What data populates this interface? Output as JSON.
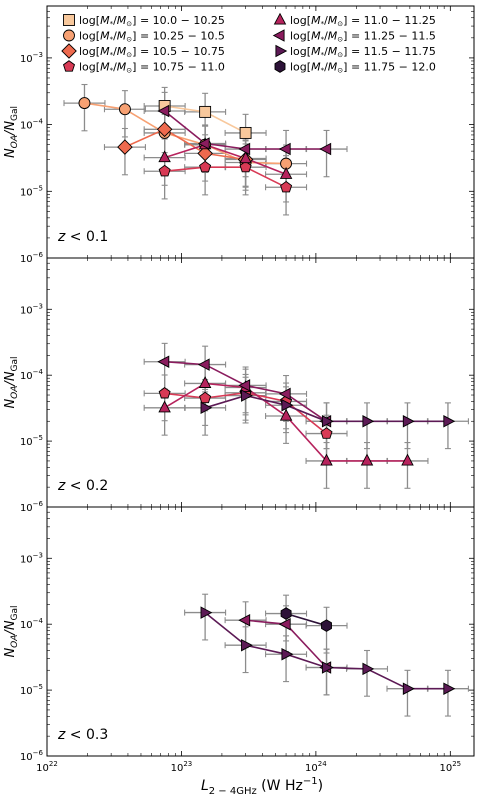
{
  "figure": {
    "xlabel_main": "L",
    "xlabel_sub": "2 − 4GHz",
    "xlabel_unit": " (W Hz",
    "xlabel_exp": "−1",
    "xlabel_close": ")",
    "ylabel_main": "N",
    "ylabel_sub1": "OA",
    "ylabel_mid": "/N",
    "ylabel_sub2": "Gal",
    "x_tick_base": "10",
    "x_tick_exps": [
      "22",
      "23",
      "24",
      "25"
    ],
    "y_tick_base": "10",
    "y_tick_exps": [
      "−3",
      "−4",
      "−5",
      "−6"
    ],
    "panel_labels": [
      {
        "z": "z",
        "rel": " < 0.1"
      },
      {
        "z": "z",
        "rel": " <  0.2"
      },
      {
        "z": "z",
        "rel": " <  0.3"
      }
    ],
    "legend_prefix": "log[",
    "legend_m": "M",
    "legend_star": "*",
    "legend_slash": "/",
    "legend_msun": "M",
    "legend_sun": "⊙",
    "legend_suffix": "] = "
  },
  "chart_data": [
    {
      "type": "line",
      "panel": 1,
      "xscale": "log",
      "yscale": "log",
      "xlim": [
        1e+22,
        1.5e+25
      ],
      "ylim": [
        1e-06,
        0.006
      ],
      "grid": false,
      "legend_placement": "top, two columns",
      "series": [
        {
          "name": "10.0 − 10.25",
          "marker": "square",
          "color": "#f8c89c",
          "x": [
            7.5e+22,
            1.5e+23,
            3e+23
          ],
          "y": [
            0.00019,
            0.000155,
            7.5e-05
          ]
        },
        {
          "name": "10.25 − 10.5",
          "marker": "circle",
          "color": "#f7a173",
          "x": [
            1.9e+22,
            3.8e+22,
            7.5e+22,
            1.5e+23,
            3e+23,
            6e+23
          ],
          "y": [
            0.00021,
            0.00017,
            7.5e-05,
            5e-05,
            2.7e-05,
            2.6e-05
          ]
        },
        {
          "name": "10.5 − 10.75",
          "marker": "diamond",
          "color": "#ee6a4e",
          "x": [
            3.8e+22,
            7.5e+22,
            1.5e+23,
            3e+23
          ],
          "y": [
            4.6e-05,
            8.5e-05,
            3.7e-05,
            3e-05
          ]
        },
        {
          "name": "10.75 − 11.0",
          "marker": "pentagon",
          "color": "#d83a55",
          "x": [
            7.5e+22,
            1.5e+23,
            3e+23,
            6e+23
          ],
          "y": [
            2e-05,
            2.3e-05,
            2.3e-05,
            1.15e-05
          ]
        },
        {
          "name": "11.0 − 11.25",
          "marker": "triangle-up",
          "color": "#b6235d",
          "x": [
            7.5e+22,
            1.5e+23,
            3e+23,
            6e+23
          ],
          "y": [
            3.2e-05,
            5e-05,
            3.1e-05,
            1.8e-05
          ]
        },
        {
          "name": "11.25 − 11.5",
          "marker": "triangle-left",
          "color": "#8a1c5e",
          "x": [
            7.5e+22,
            1.5e+23,
            3e+23,
            6e+23,
            1.2e+24
          ],
          "y": [
            0.00016,
            5.2e-05,
            4.3e-05,
            4.3e-05,
            4.3e-05
          ]
        },
        {
          "name": "11.5 − 11.75",
          "marker": "triangle-right",
          "color": "#5c1a55",
          "x": [],
          "y": []
        },
        {
          "name": "11.75 − 12.0",
          "marker": "hexagon",
          "color": "#2d1238",
          "x": [],
          "y": []
        }
      ]
    },
    {
      "type": "line",
      "panel": 2,
      "xscale": "log",
      "yscale": "log",
      "xlim": [
        1e+22,
        1.5e+25
      ],
      "ylim": [
        1e-06,
        0.006
      ],
      "grid": false,
      "series": [
        {
          "name": "10.75 − 11.0",
          "marker": "pentagon",
          "color": "#d83a55",
          "x": [
            7.5e+22,
            1.5e+23,
            3e+23,
            6e+23,
            1.2e+24
          ],
          "y": [
            5.3e-05,
            4.5e-05,
            5.4e-05,
            4e-05,
            1.3e-05
          ]
        },
        {
          "name": "11.0 − 11.25",
          "marker": "triangle-up",
          "color": "#b6235d",
          "x": [
            7.5e+22,
            1.5e+23,
            3e+23,
            6e+23,
            1.2e+24,
            2.4e+24,
            4.8e+24
          ],
          "y": [
            3.2e-05,
            7.5e-05,
            6.5e-05,
            2.4e-05,
            5e-06,
            5e-06,
            5e-06
          ]
        },
        {
          "name": "11.25 − 11.5",
          "marker": "triangle-left",
          "color": "#8a1c5e",
          "x": [
            7.5e+22,
            1.5e+23,
            3e+23,
            6e+23,
            1.2e+24
          ],
          "y": [
            0.00016,
            0.000145,
            7e-05,
            5.2e-05,
            2e-05
          ]
        },
        {
          "name": "11.5 − 11.75",
          "marker": "triangle-right",
          "color": "#5c1a55",
          "x": [
            1.5e+23,
            3e+23,
            6e+23,
            1.2e+24,
            2.4e+24,
            4.8e+24,
            9.6e+24
          ],
          "y": [
            3.2e-05,
            4.9e-05,
            3.5e-05,
            2e-05,
            2e-05,
            2e-05,
            2e-05
          ]
        }
      ]
    },
    {
      "type": "line",
      "panel": 3,
      "xscale": "log",
      "yscale": "log",
      "xlim": [
        1e+22,
        1.5e+25
      ],
      "ylim": [
        1e-06,
        0.006
      ],
      "grid": false,
      "series": [
        {
          "name": "11.25 − 11.5",
          "marker": "triangle-left",
          "color": "#8a1c5e",
          "x": [
            3e+23,
            6e+23,
            1.2e+24
          ],
          "y": [
            0.000115,
            0.0001,
            2.2e-05
          ]
        },
        {
          "name": "11.5 − 11.75",
          "marker": "triangle-right",
          "color": "#5c1a55",
          "x": [
            1.5e+23,
            3e+23,
            6e+23,
            1.2e+24,
            2.4e+24,
            4.8e+24,
            9.6e+24
          ],
          "y": [
            0.00015,
            4.8e-05,
            3.5e-05,
            2.2e-05,
            2.1e-05,
            1.05e-05,
            1.05e-05
          ]
        },
        {
          "name": "11.75 − 12.0",
          "marker": "hexagon",
          "color": "#2d1238",
          "x": [
            6e+23,
            1.2e+24
          ],
          "y": [
            0.000145,
            9.5e-05
          ]
        }
      ]
    }
  ]
}
